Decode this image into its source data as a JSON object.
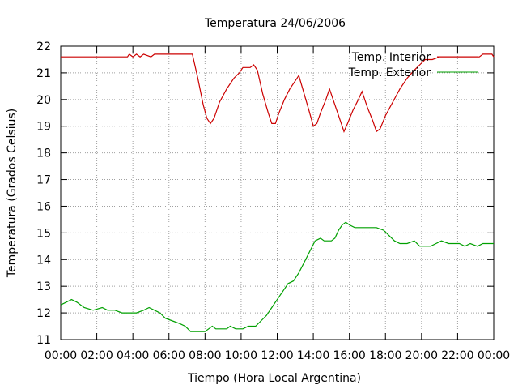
{
  "chart_data": {
    "type": "line",
    "title": "Temperatura 24/06/2006",
    "xlabel": "Tiempo (Hora Local Argentina)",
    "ylabel": "Temperatura (Grados Celsius)",
    "xlim": [
      0,
      24
    ],
    "ylim": [
      11,
      22
    ],
    "x_tick_labels": [
      "00:00",
      "02:00",
      "04:00",
      "06:00",
      "08:00",
      "10:00",
      "12:00",
      "14:00",
      "16:00",
      "18:00",
      "20:00",
      "22:00",
      "00:00"
    ],
    "y_ticks": [
      11,
      12,
      13,
      14,
      15,
      16,
      17,
      18,
      19,
      20,
      21,
      22
    ],
    "grid": true,
    "legend_position": "top-right",
    "series": [
      {
        "name": "Temp. Interior",
        "color": "#cc0000",
        "points": [
          [
            0.0,
            21.6
          ],
          [
            3.7,
            21.6
          ],
          [
            3.8,
            21.7
          ],
          [
            4.0,
            21.6
          ],
          [
            4.2,
            21.7
          ],
          [
            4.4,
            21.6
          ],
          [
            4.6,
            21.7
          ],
          [
            5.0,
            21.6
          ],
          [
            5.2,
            21.7
          ],
          [
            7.3,
            21.7
          ],
          [
            7.6,
            20.8
          ],
          [
            7.9,
            19.8
          ],
          [
            8.1,
            19.3
          ],
          [
            8.3,
            19.1
          ],
          [
            8.5,
            19.3
          ],
          [
            8.8,
            19.9
          ],
          [
            9.2,
            20.4
          ],
          [
            9.6,
            20.8
          ],
          [
            9.9,
            21.0
          ],
          [
            10.1,
            21.2
          ],
          [
            10.5,
            21.2
          ],
          [
            10.7,
            21.3
          ],
          [
            10.9,
            21.1
          ],
          [
            11.2,
            20.2
          ],
          [
            11.5,
            19.5
          ],
          [
            11.7,
            19.1
          ],
          [
            11.9,
            19.1
          ],
          [
            12.1,
            19.5
          ],
          [
            12.4,
            20.0
          ],
          [
            12.7,
            20.4
          ],
          [
            13.0,
            20.7
          ],
          [
            13.2,
            20.9
          ],
          [
            13.5,
            20.2
          ],
          [
            13.8,
            19.5
          ],
          [
            14.0,
            19.0
          ],
          [
            14.2,
            19.1
          ],
          [
            14.4,
            19.5
          ],
          [
            14.7,
            20.0
          ],
          [
            14.9,
            20.4
          ],
          [
            15.2,
            19.8
          ],
          [
            15.5,
            19.2
          ],
          [
            15.7,
            18.8
          ],
          [
            15.9,
            19.1
          ],
          [
            16.2,
            19.6
          ],
          [
            16.5,
            20.0
          ],
          [
            16.7,
            20.3
          ],
          [
            17.0,
            19.7
          ],
          [
            17.3,
            19.2
          ],
          [
            17.5,
            18.8
          ],
          [
            17.7,
            18.9
          ],
          [
            18.0,
            19.4
          ],
          [
            18.4,
            19.9
          ],
          [
            18.8,
            20.4
          ],
          [
            19.2,
            20.8
          ],
          [
            19.6,
            21.1
          ],
          [
            19.9,
            21.3
          ],
          [
            20.2,
            21.5
          ],
          [
            20.6,
            21.5
          ],
          [
            21.0,
            21.6
          ],
          [
            23.2,
            21.6
          ],
          [
            23.4,
            21.7
          ],
          [
            23.9,
            21.7
          ],
          [
            24.0,
            21.6
          ]
        ]
      },
      {
        "name": "Temp. Exterior",
        "color": "#00a000",
        "points": [
          [
            0.0,
            12.3
          ],
          [
            0.3,
            12.4
          ],
          [
            0.6,
            12.5
          ],
          [
            0.9,
            12.4
          ],
          [
            1.3,
            12.2
          ],
          [
            1.8,
            12.1
          ],
          [
            2.3,
            12.2
          ],
          [
            2.6,
            12.1
          ],
          [
            3.0,
            12.1
          ],
          [
            3.4,
            12.0
          ],
          [
            4.2,
            12.0
          ],
          [
            4.6,
            12.1
          ],
          [
            4.9,
            12.2
          ],
          [
            5.2,
            12.1
          ],
          [
            5.5,
            12.0
          ],
          [
            5.8,
            11.8
          ],
          [
            6.2,
            11.7
          ],
          [
            6.6,
            11.6
          ],
          [
            6.9,
            11.5
          ],
          [
            7.2,
            11.3
          ],
          [
            8.0,
            11.3
          ],
          [
            8.2,
            11.4
          ],
          [
            8.4,
            11.5
          ],
          [
            8.6,
            11.4
          ],
          [
            9.2,
            11.4
          ],
          [
            9.4,
            11.5
          ],
          [
            9.7,
            11.4
          ],
          [
            10.1,
            11.4
          ],
          [
            10.4,
            11.5
          ],
          [
            10.8,
            11.5
          ],
          [
            11.1,
            11.7
          ],
          [
            11.4,
            11.9
          ],
          [
            11.7,
            12.2
          ],
          [
            12.0,
            12.5
          ],
          [
            12.3,
            12.8
          ],
          [
            12.6,
            13.1
          ],
          [
            12.9,
            13.2
          ],
          [
            13.2,
            13.5
          ],
          [
            13.5,
            13.9
          ],
          [
            13.8,
            14.3
          ],
          [
            14.1,
            14.7
          ],
          [
            14.4,
            14.8
          ],
          [
            14.6,
            14.7
          ],
          [
            15.0,
            14.7
          ],
          [
            15.2,
            14.8
          ],
          [
            15.4,
            15.1
          ],
          [
            15.6,
            15.3
          ],
          [
            15.8,
            15.4
          ],
          [
            16.0,
            15.3
          ],
          [
            16.3,
            15.2
          ],
          [
            16.8,
            15.2
          ],
          [
            17.5,
            15.2
          ],
          [
            17.9,
            15.1
          ],
          [
            18.2,
            14.9
          ],
          [
            18.5,
            14.7
          ],
          [
            18.8,
            14.6
          ],
          [
            19.2,
            14.6
          ],
          [
            19.6,
            14.7
          ],
          [
            19.9,
            14.5
          ],
          [
            20.5,
            14.5
          ],
          [
            20.8,
            14.6
          ],
          [
            21.1,
            14.7
          ],
          [
            21.5,
            14.6
          ],
          [
            22.1,
            14.6
          ],
          [
            22.4,
            14.5
          ],
          [
            22.7,
            14.6
          ],
          [
            23.1,
            14.5
          ],
          [
            23.4,
            14.6
          ],
          [
            24.0,
            14.6
          ]
        ]
      }
    ]
  }
}
